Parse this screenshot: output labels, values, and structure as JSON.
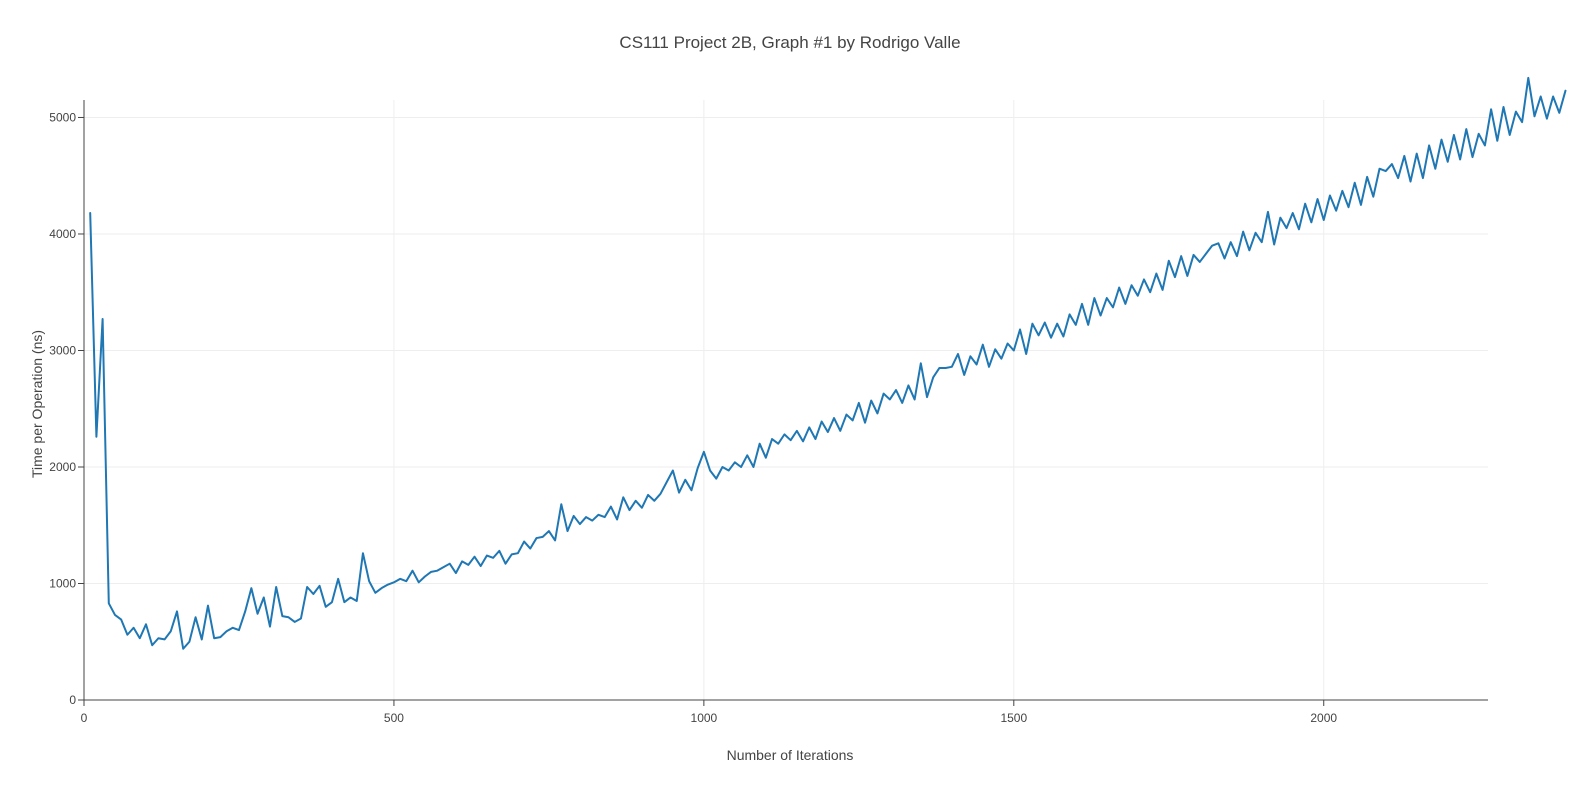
{
  "chart_data": {
    "type": "line",
    "title": "CS111 Project 2B,  Graph #1 by Rodrigo Valle",
    "xlabel": "Number of Iterations",
    "ylabel": "Time per Operation (ns)",
    "xlim": [
      0,
      2265
    ],
    "ylim": [
      0,
      5150
    ],
    "xticks": [
      0,
      500,
      1000,
      1500,
      2000
    ],
    "xtick_labels": [
      "0",
      "500",
      "1000",
      "1500",
      "2000"
    ],
    "yticks": [
      0,
      1000,
      2000,
      3000,
      4000,
      5000
    ],
    "ytick_labels": [
      "0",
      "1000",
      "2000",
      "3000",
      "4000",
      "5000"
    ],
    "grid": true,
    "colors": {
      "series": "#1f77b4",
      "axis": "#444444",
      "grid": "#eeeeee",
      "text": "#444444"
    },
    "series": [
      {
        "points": [
          [
            10,
            4180
          ],
          [
            20,
            2260
          ],
          [
            30,
            3270
          ],
          [
            40,
            830
          ],
          [
            50,
            730
          ],
          [
            60,
            690
          ],
          [
            70,
            560
          ],
          [
            80,
            620
          ],
          [
            90,
            530
          ],
          [
            100,
            650
          ],
          [
            110,
            470
          ],
          [
            120,
            530
          ],
          [
            130,
            520
          ],
          [
            140,
            590
          ],
          [
            150,
            760
          ],
          [
            160,
            440
          ],
          [
            170,
            500
          ],
          [
            180,
            710
          ],
          [
            190,
            520
          ],
          [
            200,
            810
          ],
          [
            210,
            530
          ],
          [
            220,
            540
          ],
          [
            230,
            590
          ],
          [
            240,
            620
          ],
          [
            250,
            600
          ],
          [
            260,
            760
          ],
          [
            270,
            960
          ],
          [
            280,
            740
          ],
          [
            290,
            880
          ],
          [
            300,
            630
          ],
          [
            310,
            970
          ],
          [
            320,
            720
          ],
          [
            330,
            710
          ],
          [
            340,
            670
          ],
          [
            350,
            700
          ],
          [
            360,
            970
          ],
          [
            370,
            910
          ],
          [
            380,
            980
          ],
          [
            390,
            800
          ],
          [
            400,
            840
          ],
          [
            410,
            1040
          ],
          [
            420,
            840
          ],
          [
            430,
            880
          ],
          [
            440,
            850
          ],
          [
            450,
            1260
          ],
          [
            460,
            1020
          ],
          [
            470,
            920
          ],
          [
            480,
            960
          ],
          [
            490,
            990
          ],
          [
            500,
            1010
          ],
          [
            510,
            1040
          ],
          [
            520,
            1020
          ],
          [
            530,
            1110
          ],
          [
            540,
            1010
          ],
          [
            550,
            1060
          ],
          [
            560,
            1100
          ],
          [
            570,
            1110
          ],
          [
            580,
            1140
          ],
          [
            590,
            1170
          ],
          [
            600,
            1090
          ],
          [
            610,
            1190
          ],
          [
            620,
            1160
          ],
          [
            630,
            1230
          ],
          [
            640,
            1150
          ],
          [
            650,
            1240
          ],
          [
            660,
            1220
          ],
          [
            670,
            1280
          ],
          [
            680,
            1170
          ],
          [
            690,
            1250
          ],
          [
            700,
            1260
          ],
          [
            710,
            1360
          ],
          [
            720,
            1300
          ],
          [
            730,
            1390
          ],
          [
            740,
            1400
          ],
          [
            750,
            1450
          ],
          [
            760,
            1370
          ],
          [
            770,
            1680
          ],
          [
            780,
            1450
          ],
          [
            790,
            1580
          ],
          [
            800,
            1510
          ],
          [
            810,
            1570
          ],
          [
            820,
            1540
          ],
          [
            830,
            1590
          ],
          [
            840,
            1570
          ],
          [
            850,
            1660
          ],
          [
            860,
            1550
          ],
          [
            870,
            1740
          ],
          [
            880,
            1630
          ],
          [
            890,
            1710
          ],
          [
            900,
            1650
          ],
          [
            910,
            1760
          ],
          [
            920,
            1710
          ],
          [
            930,
            1770
          ],
          [
            940,
            1870
          ],
          [
            950,
            1970
          ],
          [
            960,
            1780
          ],
          [
            970,
            1890
          ],
          [
            980,
            1800
          ],
          [
            990,
            1990
          ],
          [
            1000,
            2130
          ],
          [
            1010,
            1970
          ],
          [
            1020,
            1900
          ],
          [
            1030,
            2000
          ],
          [
            1040,
            1970
          ],
          [
            1050,
            2040
          ],
          [
            1060,
            2000
          ],
          [
            1070,
            2100
          ],
          [
            1080,
            2000
          ],
          [
            1090,
            2200
          ],
          [
            1100,
            2080
          ],
          [
            1110,
            2240
          ],
          [
            1120,
            2200
          ],
          [
            1130,
            2280
          ],
          [
            1140,
            2230
          ],
          [
            1150,
            2310
          ],
          [
            1160,
            2220
          ],
          [
            1170,
            2340
          ],
          [
            1180,
            2240
          ],
          [
            1190,
            2390
          ],
          [
            1200,
            2300
          ],
          [
            1210,
            2420
          ],
          [
            1220,
            2310
          ],
          [
            1230,
            2450
          ],
          [
            1240,
            2400
          ],
          [
            1250,
            2550
          ],
          [
            1260,
            2380
          ],
          [
            1270,
            2570
          ],
          [
            1280,
            2460
          ],
          [
            1290,
            2630
          ],
          [
            1300,
            2580
          ],
          [
            1310,
            2660
          ],
          [
            1320,
            2550
          ],
          [
            1330,
            2700
          ],
          [
            1340,
            2580
          ],
          [
            1350,
            2890
          ],
          [
            1360,
            2600
          ],
          [
            1370,
            2770
          ],
          [
            1380,
            2850
          ],
          [
            1390,
            2850
          ],
          [
            1400,
            2860
          ],
          [
            1410,
            2970
          ],
          [
            1420,
            2790
          ],
          [
            1430,
            2950
          ],
          [
            1440,
            2880
          ],
          [
            1450,
            3050
          ],
          [
            1460,
            2860
          ],
          [
            1470,
            3010
          ],
          [
            1480,
            2930
          ],
          [
            1490,
            3060
          ],
          [
            1500,
            3000
          ],
          [
            1510,
            3180
          ],
          [
            1520,
            2970
          ],
          [
            1530,
            3230
          ],
          [
            1540,
            3130
          ],
          [
            1550,
            3240
          ],
          [
            1560,
            3110
          ],
          [
            1570,
            3230
          ],
          [
            1580,
            3120
          ],
          [
            1590,
            3310
          ],
          [
            1600,
            3220
          ],
          [
            1610,
            3400
          ],
          [
            1620,
            3220
          ],
          [
            1630,
            3450
          ],
          [
            1640,
            3300
          ],
          [
            1650,
            3450
          ],
          [
            1660,
            3370
          ],
          [
            1670,
            3540
          ],
          [
            1680,
            3400
          ],
          [
            1690,
            3560
          ],
          [
            1700,
            3470
          ],
          [
            1710,
            3610
          ],
          [
            1720,
            3500
          ],
          [
            1730,
            3660
          ],
          [
            1740,
            3520
          ],
          [
            1750,
            3770
          ],
          [
            1760,
            3630
          ],
          [
            1770,
            3810
          ],
          [
            1780,
            3640
          ],
          [
            1790,
            3820
          ],
          [
            1800,
            3760
          ],
          [
            1810,
            3830
          ],
          [
            1820,
            3900
          ],
          [
            1830,
            3920
          ],
          [
            1840,
            3790
          ],
          [
            1850,
            3930
          ],
          [
            1860,
            3810
          ],
          [
            1870,
            4020
          ],
          [
            1880,
            3860
          ],
          [
            1890,
            4010
          ],
          [
            1900,
            3930
          ],
          [
            1910,
            4190
          ],
          [
            1920,
            3910
          ],
          [
            1930,
            4140
          ],
          [
            1940,
            4050
          ],
          [
            1950,
            4180
          ],
          [
            1960,
            4040
          ],
          [
            1970,
            4260
          ],
          [
            1980,
            4100
          ],
          [
            1990,
            4300
          ],
          [
            2000,
            4120
          ],
          [
            2010,
            4330
          ],
          [
            2020,
            4200
          ],
          [
            2030,
            4370
          ],
          [
            2040,
            4230
          ],
          [
            2050,
            4440
          ],
          [
            2060,
            4250
          ],
          [
            2070,
            4490
          ],
          [
            2080,
            4320
          ],
          [
            2090,
            4560
          ],
          [
            2100,
            4540
          ],
          [
            2110,
            4600
          ],
          [
            2120,
            4480
          ],
          [
            2130,
            4670
          ],
          [
            2140,
            4450
          ],
          [
            2150,
            4690
          ],
          [
            2160,
            4480
          ],
          [
            2170,
            4760
          ],
          [
            2180,
            4560
          ],
          [
            2190,
            4810
          ],
          [
            2200,
            4620
          ],
          [
            2210,
            4850
          ],
          [
            2220,
            4640
          ],
          [
            2230,
            4900
          ],
          [
            2240,
            4660
          ],
          [
            2250,
            4860
          ],
          [
            2260,
            4760
          ],
          [
            2270,
            5070
          ],
          [
            2280,
            4800
          ],
          [
            2290,
            5090
          ],
          [
            2300,
            4850
          ],
          [
            2310,
            5050
          ],
          [
            2320,
            4960
          ],
          [
            2330,
            5340
          ],
          [
            2340,
            5010
          ],
          [
            2350,
            5180
          ],
          [
            2360,
            4990
          ],
          [
            2370,
            5180
          ],
          [
            2380,
            5040
          ],
          [
            2390,
            5230
          ]
        ]
      }
    ]
  }
}
